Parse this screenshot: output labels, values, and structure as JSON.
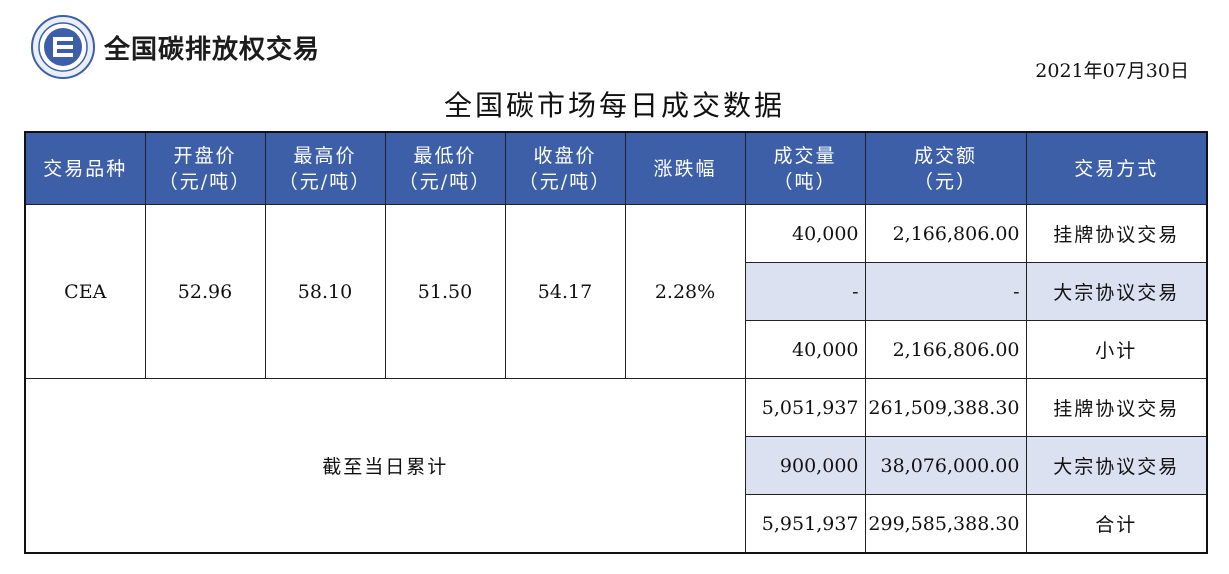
{
  "header": {
    "logo_text": "全国碳排放权交易",
    "date": "2021年07月30日",
    "title": "全国碳市场每日成交数据"
  },
  "colors": {
    "header_bg": "#3c5fa8",
    "highlight_row": "#dbe1f1"
  },
  "columns": [
    {
      "line1": "交易品种",
      "line2": ""
    },
    {
      "line1": "开盘价",
      "line2": "（元/吨）"
    },
    {
      "line1": "最高价",
      "line2": "（元/吨）"
    },
    {
      "line1": "最低价",
      "line2": "（元/吨）"
    },
    {
      "line1": "收盘价",
      "line2": "（元/吨）"
    },
    {
      "line1": "涨跌幅",
      "line2": ""
    },
    {
      "line1": "成交量",
      "line2": "（吨）"
    },
    {
      "line1": "成交额",
      "line2": "（元）"
    },
    {
      "line1": "交易方式",
      "line2": ""
    }
  ],
  "daily": {
    "product": "CEA",
    "open": "52.96",
    "high": "58.10",
    "low": "51.50",
    "close": "54.17",
    "change": "2.28%",
    "rows": [
      {
        "volume": "40,000",
        "amount": "2,166,806.00",
        "method": "挂牌协议交易"
      },
      {
        "volume": "-",
        "amount": "-",
        "method": "大宗协议交易"
      },
      {
        "volume": "40,000",
        "amount": "2,166,806.00",
        "method": "小计"
      }
    ]
  },
  "cumulative": {
    "label": "截至当日累计",
    "rows": [
      {
        "volume": "5,051,937",
        "amount": "261,509,388.30",
        "method": "挂牌协议交易"
      },
      {
        "volume": "900,000",
        "amount": "38,076,000.00",
        "method": "大宗协议交易"
      },
      {
        "volume": "5,951,937",
        "amount": "299,585,388.30",
        "method": "合计"
      }
    ]
  }
}
